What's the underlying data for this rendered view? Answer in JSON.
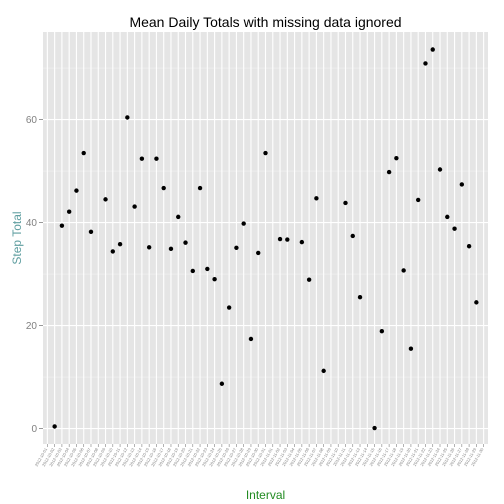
{
  "colors": {
    "panel_bg": "#e5e5e5",
    "grid_major": "#ffffff",
    "grid_minor": "#f2f2f2",
    "point": "#000000",
    "xlabel": "#228b22",
    "ylabel": "#5f9ea0",
    "tick": "#7f7f7f"
  },
  "chart_data": {
    "type": "scatter",
    "title": "Mean Daily Totals with missing data ignored",
    "xlabel": "Interval",
    "ylabel": "Step Total",
    "ylim": [
      -3,
      77
    ],
    "yticks": [
      0,
      20,
      40,
      60
    ],
    "grid": true,
    "categories": [
      "2012-10-01",
      "2012-10-02",
      "2012-10-03",
      "2012-10-04",
      "2012-10-05",
      "2012-10-06",
      "2012-10-07",
      "2012-10-08",
      "2012-10-09",
      "2012-10-10",
      "2012-10-11",
      "2012-10-12",
      "2012-10-13",
      "2012-10-14",
      "2012-10-15",
      "2012-10-16",
      "2012-10-17",
      "2012-10-18",
      "2012-10-19",
      "2012-10-20",
      "2012-10-21",
      "2012-10-22",
      "2012-10-23",
      "2012-10-24",
      "2012-10-25",
      "2012-10-26",
      "2012-10-27",
      "2012-10-28",
      "2012-10-29",
      "2012-10-30",
      "2012-10-31",
      "2012-11-01",
      "2012-11-02",
      "2012-11-03",
      "2012-11-04",
      "2012-11-05",
      "2012-11-06",
      "2012-11-07",
      "2012-11-08",
      "2012-11-09",
      "2012-11-10",
      "2012-11-11",
      "2012-11-12",
      "2012-11-13",
      "2012-11-14",
      "2012-11-15",
      "2012-11-16",
      "2012-11-17",
      "2012-11-18",
      "2012-11-19",
      "2012-11-20",
      "2012-11-21",
      "2012-11-22",
      "2012-11-23",
      "2012-11-24",
      "2012-11-25",
      "2012-11-26",
      "2012-11-27",
      "2012-11-28",
      "2012-11-29",
      "2012-11-30"
    ],
    "points": [
      {
        "x": "2012-10-02",
        "y": 0.4
      },
      {
        "x": "2012-10-03",
        "y": 39.4
      },
      {
        "x": "2012-10-04",
        "y": 42.1
      },
      {
        "x": "2012-10-05",
        "y": 46.2
      },
      {
        "x": "2012-10-06",
        "y": 53.5
      },
      {
        "x": "2012-10-07",
        "y": 38.2
      },
      {
        "x": "2012-10-09",
        "y": 44.5
      },
      {
        "x": "2012-10-10",
        "y": 34.4
      },
      {
        "x": "2012-10-11",
        "y": 35.8
      },
      {
        "x": "2012-10-12",
        "y": 60.4
      },
      {
        "x": "2012-10-13",
        "y": 43.1
      },
      {
        "x": "2012-10-14",
        "y": 52.4
      },
      {
        "x": "2012-10-15",
        "y": 35.2
      },
      {
        "x": "2012-10-16",
        "y": 52.4
      },
      {
        "x": "2012-10-17",
        "y": 46.7
      },
      {
        "x": "2012-10-18",
        "y": 34.9
      },
      {
        "x": "2012-10-19",
        "y": 41.1
      },
      {
        "x": "2012-10-20",
        "y": 36.1
      },
      {
        "x": "2012-10-21",
        "y": 30.6
      },
      {
        "x": "2012-10-22",
        "y": 46.7
      },
      {
        "x": "2012-10-23",
        "y": 31.0
      },
      {
        "x": "2012-10-24",
        "y": 29.0
      },
      {
        "x": "2012-10-25",
        "y": 8.7
      },
      {
        "x": "2012-10-26",
        "y": 23.5
      },
      {
        "x": "2012-10-27",
        "y": 35.1
      },
      {
        "x": "2012-10-28",
        "y": 39.8
      },
      {
        "x": "2012-10-29",
        "y": 17.4
      },
      {
        "x": "2012-10-30",
        "y": 34.1
      },
      {
        "x": "2012-10-31",
        "y": 53.5
      },
      {
        "x": "2012-11-02",
        "y": 36.8
      },
      {
        "x": "2012-11-03",
        "y": 36.7
      },
      {
        "x": "2012-11-05",
        "y": 36.2
      },
      {
        "x": "2012-11-06",
        "y": 28.9
      },
      {
        "x": "2012-11-07",
        "y": 44.7
      },
      {
        "x": "2012-11-08",
        "y": 11.2
      },
      {
        "x": "2012-11-11",
        "y": 43.8
      },
      {
        "x": "2012-11-12",
        "y": 37.4
      },
      {
        "x": "2012-11-13",
        "y": 25.5
      },
      {
        "x": "2012-11-15",
        "y": 0.1
      },
      {
        "x": "2012-11-16",
        "y": 18.9
      },
      {
        "x": "2012-11-17",
        "y": 49.8
      },
      {
        "x": "2012-11-18",
        "y": 52.5
      },
      {
        "x": "2012-11-19",
        "y": 30.7
      },
      {
        "x": "2012-11-20",
        "y": 15.5
      },
      {
        "x": "2012-11-21",
        "y": 44.4
      },
      {
        "x": "2012-11-22",
        "y": 70.9
      },
      {
        "x": "2012-11-23",
        "y": 73.6
      },
      {
        "x": "2012-11-24",
        "y": 50.3
      },
      {
        "x": "2012-11-25",
        "y": 41.1
      },
      {
        "x": "2012-11-26",
        "y": 38.8
      },
      {
        "x": "2012-11-27",
        "y": 47.4
      },
      {
        "x": "2012-11-28",
        "y": 35.4
      },
      {
        "x": "2012-11-29",
        "y": 24.5
      }
    ]
  }
}
